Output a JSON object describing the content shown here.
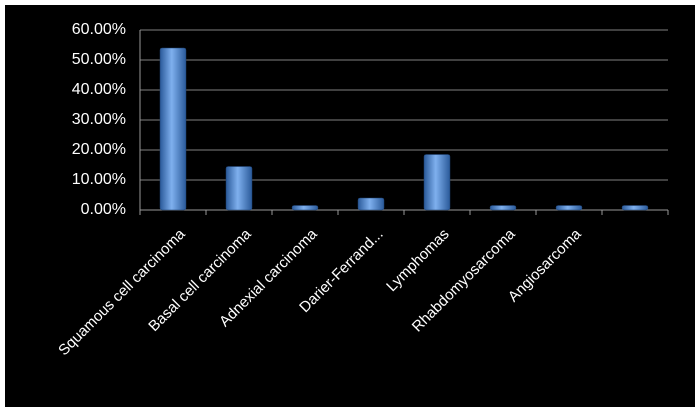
{
  "chart_data": {
    "type": "bar",
    "categories": [
      "Squamous cell carcinoma",
      "Basal cell carcinoma",
      "Adnexial carcinoma",
      "Darier-Ferrand...",
      "Lymphomas",
      "Rhabdomyosarcoma",
      "Angiosarcoma",
      null
    ],
    "values": [
      54,
      14.5,
      1.5,
      4,
      18.5,
      1.5,
      1.5,
      1.5
    ],
    "color": "#4f81bd",
    "ylim": [
      0,
      60
    ],
    "yticks": [
      {
        "value": 0,
        "label": "0.00%"
      },
      {
        "value": 10,
        "label": "10.00%"
      },
      {
        "value": 20,
        "label": "20.00%"
      },
      {
        "value": 30,
        "label": "30.00%"
      },
      {
        "value": 40,
        "label": "40.00%"
      },
      {
        "value": 50,
        "label": "50.00%"
      },
      {
        "value": 60,
        "label": "60.00%"
      }
    ],
    "grid": true
  }
}
